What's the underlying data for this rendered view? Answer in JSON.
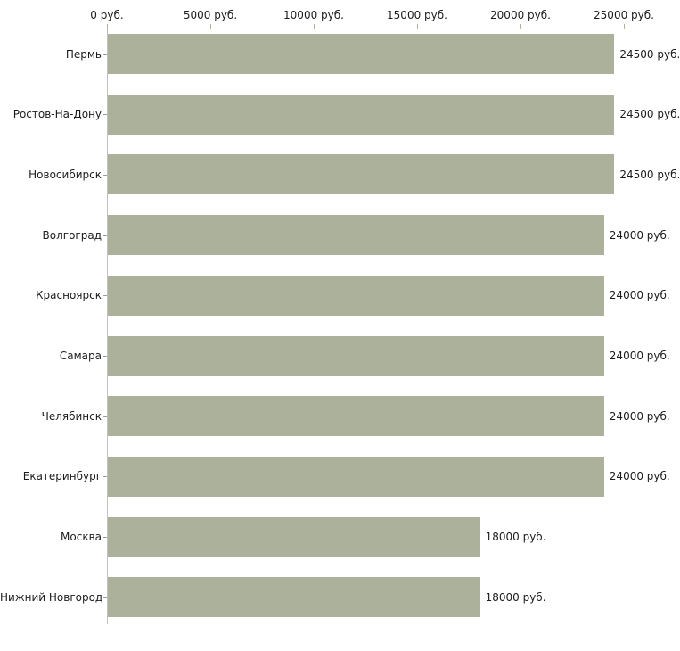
{
  "chart_data": {
    "type": "bar",
    "orientation": "horizontal",
    "title": "",
    "xlabel": "",
    "ylabel": "",
    "categories": [
      "Пермь",
      "Ростов-На-Дону",
      "Новосибирск",
      "Волгоград",
      "Красноярск",
      "Самара",
      "Челябинск",
      "Екатеринбург",
      "Москва",
      "Нижний Новгород"
    ],
    "values": [
      24500,
      24500,
      24500,
      24000,
      24000,
      24000,
      24000,
      24000,
      18000,
      18000
    ],
    "value_labels": [
      "24500 руб.",
      "24500 руб.",
      "24500 руб.",
      "24000 руб.",
      "24000 руб.",
      "24000 руб.",
      "24000 руб.",
      "24000 руб.",
      "18000 руб.",
      "18000 руб."
    ],
    "x_ticks": [
      0,
      5000,
      10000,
      15000,
      20000,
      25000
    ],
    "x_tick_labels": [
      "0 руб.",
      "5000 руб.",
      "10000 руб.",
      "15000 руб.",
      "20000 руб.",
      "25000 руб."
    ],
    "xlim": [
      0,
      25000
    ],
    "axis_position": "top",
    "grid": false,
    "legend": false,
    "colors": {
      "bar": "#abb19a",
      "axis_line": "#c0c0c0",
      "top_tick": "#b5b492",
      "left_tick": "#9c9c9c",
      "text": "#1c1c1c",
      "background": "#ffffff"
    }
  }
}
